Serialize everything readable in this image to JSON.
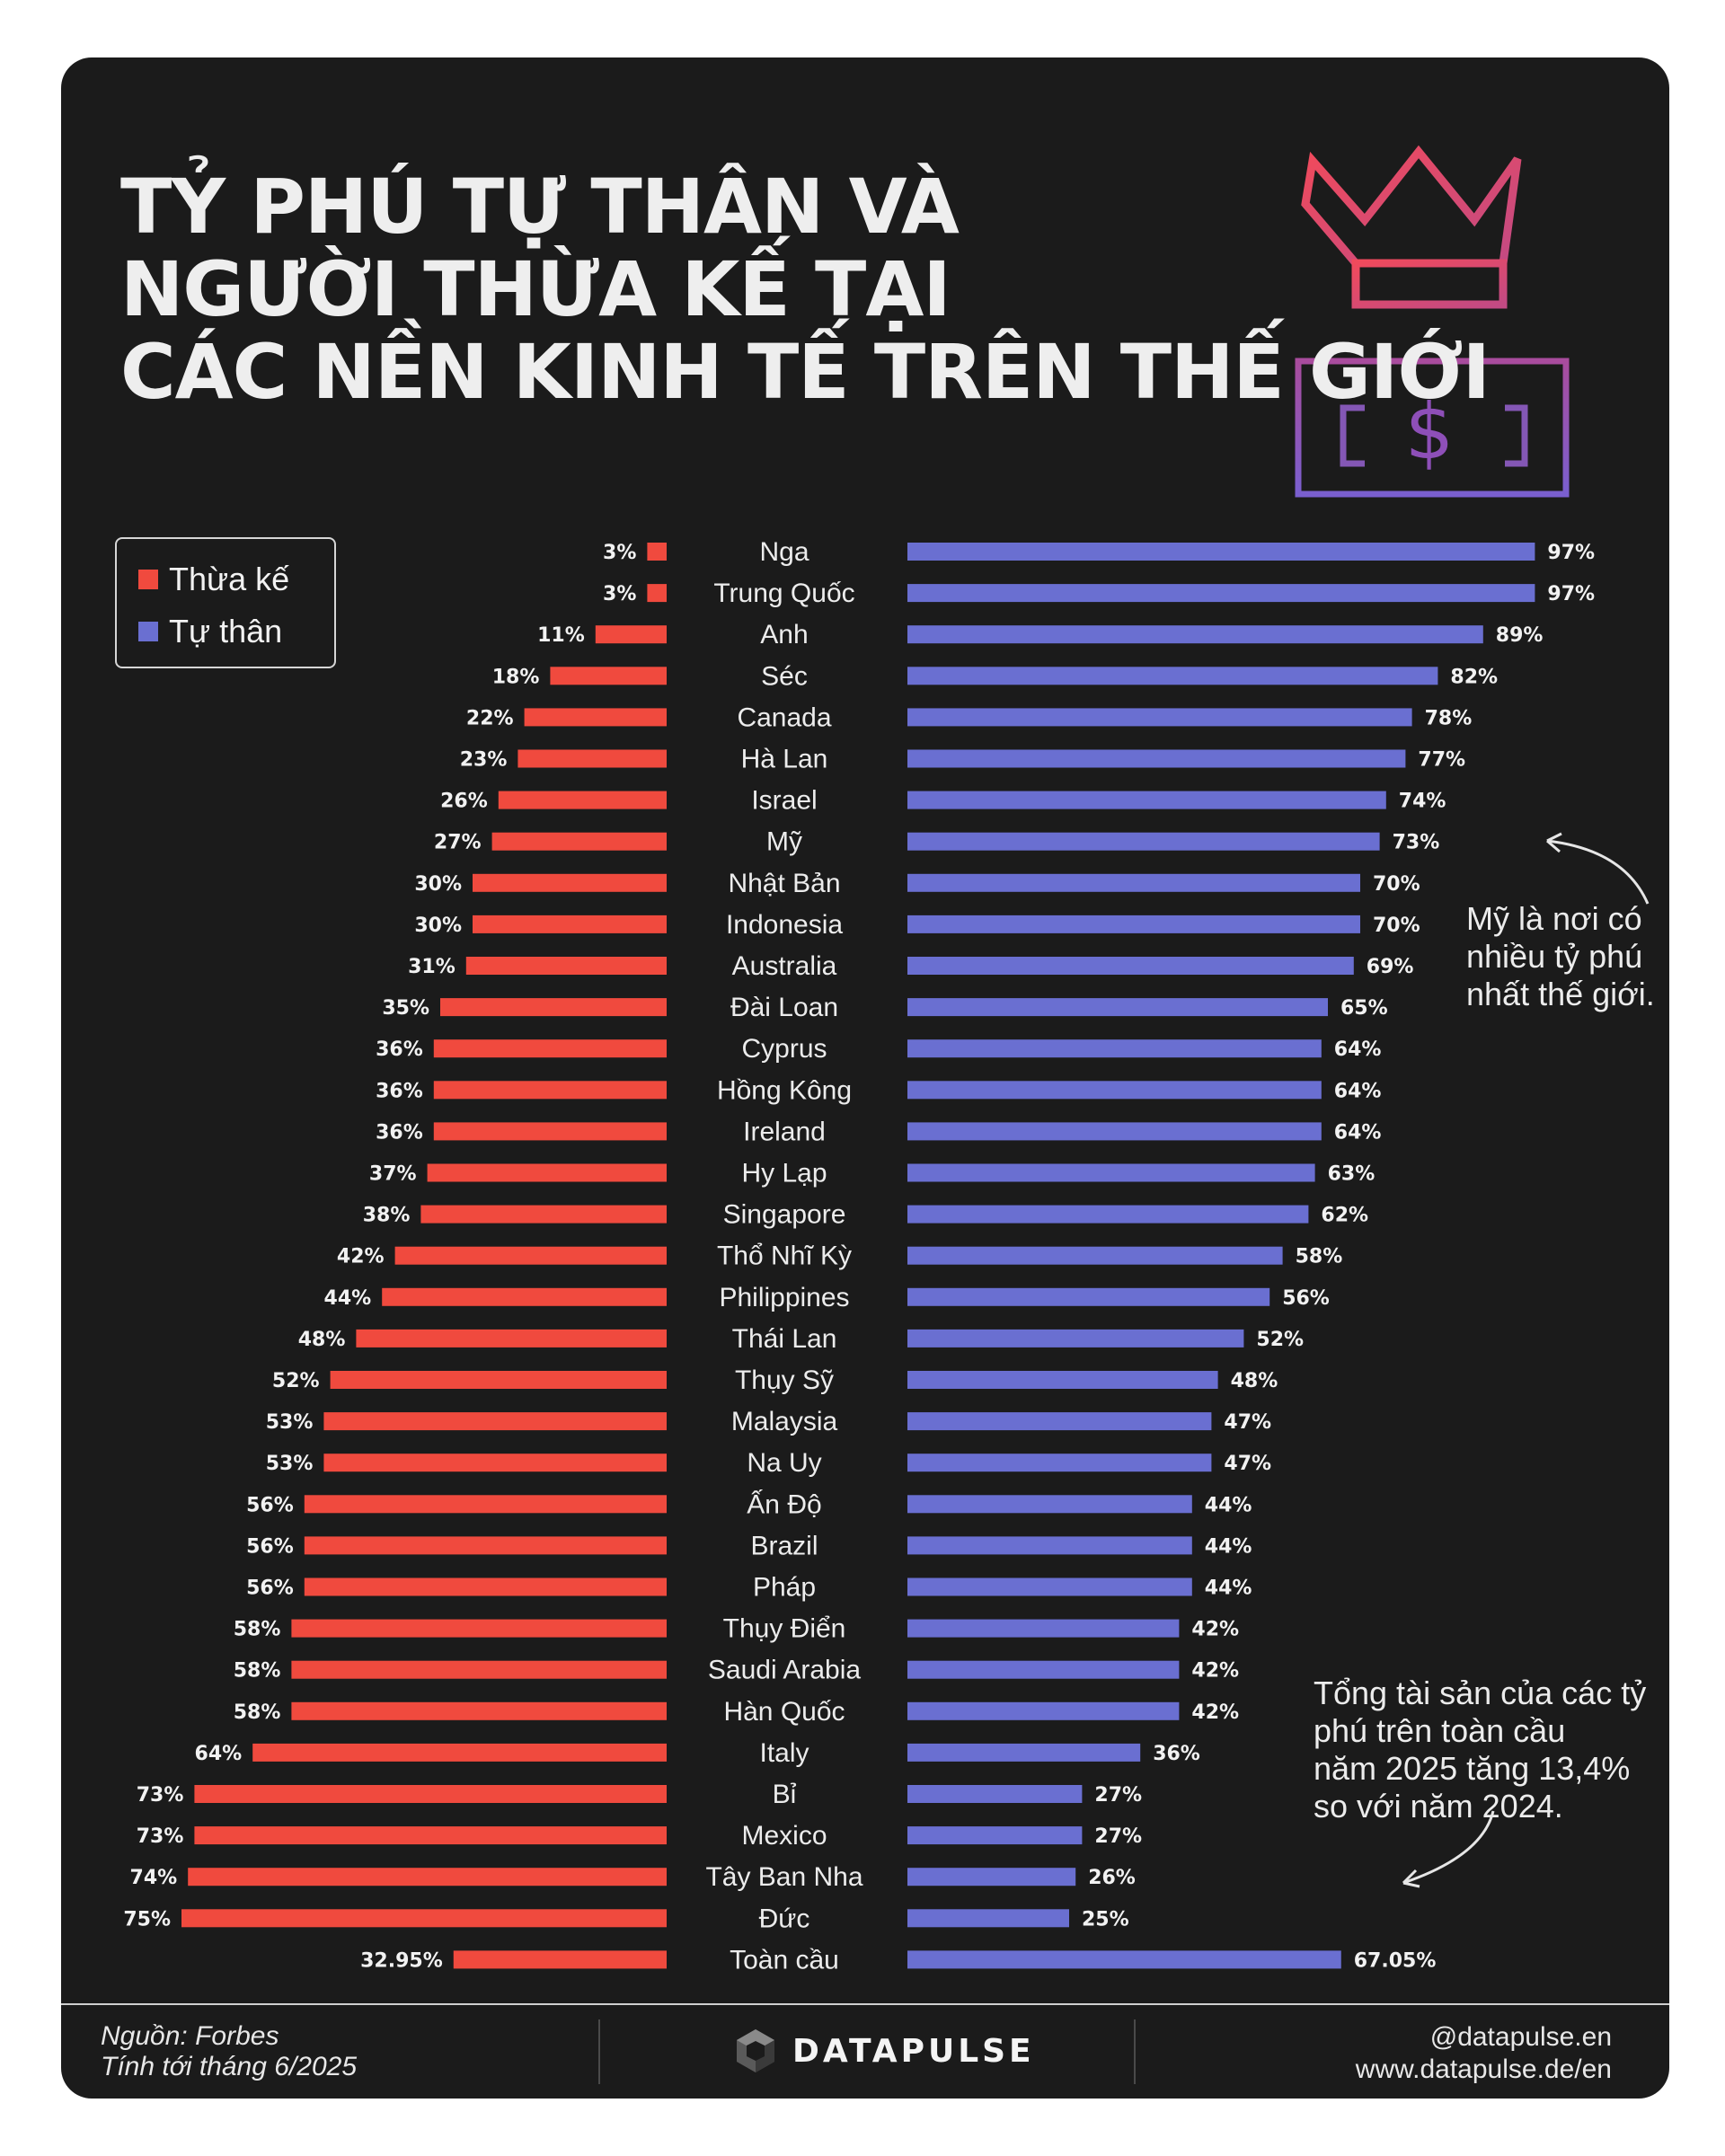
{
  "title": {
    "line1": "TỶ PHÚ TỰ THÂN VÀ",
    "line2": "NGƯỜI THỪA KẾ TẠI",
    "line3": "CÁC NỀN KINH TẾ TRÊN THẾ GIỚI"
  },
  "illustration": {
    "money_symbol": "$",
    "crown_icon": "crown-icon",
    "money_icon": "banknote-icon"
  },
  "legend": {
    "inherited": {
      "label": "Thừa kế",
      "color": "#f04a3e"
    },
    "selfmade": {
      "label": "Tự thân",
      "color": "#6a6fd1"
    }
  },
  "chart_data": {
    "type": "bar",
    "orientation": "horizontal-diverging",
    "categories": [
      "Nga",
      "Trung Quốc",
      "Anh",
      "Séc",
      "Canada",
      "Hà Lan",
      "Israel",
      "Mỹ",
      "Nhật Bản",
      "Indonesia",
      "Australia",
      "Đài Loan",
      "Cyprus",
      "Hồng Kông",
      "Ireland",
      "Hy Lạp",
      "Singapore",
      "Thổ Nhĩ Kỳ",
      "Philippines",
      "Thái Lan",
      "Thụy Sỹ",
      "Malaysia",
      "Na Uy",
      "Ấn Độ",
      "Brazil",
      "Pháp",
      "Thụy Điển",
      "Saudi Arabia",
      "Hàn Quốc",
      "Italy",
      "Bỉ",
      "Mexico",
      "Tây Ban Nha",
      "Đức",
      "Toàn cầu"
    ],
    "series": [
      {
        "name": "Thừa kế",
        "color": "#f04a3e",
        "values": [
          3,
          3,
          11,
          18,
          22,
          23,
          26,
          27,
          30,
          30,
          31,
          35,
          36,
          36,
          36,
          37,
          38,
          42,
          44,
          48,
          52,
          53,
          53,
          56,
          56,
          56,
          58,
          58,
          58,
          64,
          73,
          73,
          74,
          75,
          32.95
        ],
        "labels": [
          "3%",
          "3%",
          "11%",
          "18%",
          "22%",
          "23%",
          "26%",
          "27%",
          "30%",
          "30%",
          "31%",
          "35%",
          "36%",
          "36%",
          "36%",
          "37%",
          "38%",
          "42%",
          "44%",
          "48%",
          "52%",
          "53%",
          "53%",
          "56%",
          "56%",
          "56%",
          "58%",
          "58%",
          "58%",
          "64%",
          "73%",
          "73%",
          "74%",
          "75%",
          "32.95%"
        ]
      },
      {
        "name": "Tự thân",
        "color": "#6a6fd1",
        "values": [
          97,
          97,
          89,
          82,
          78,
          77,
          74,
          73,
          70,
          70,
          69,
          65,
          64,
          64,
          64,
          63,
          62,
          58,
          56,
          52,
          48,
          47,
          47,
          44,
          44,
          44,
          42,
          42,
          42,
          36,
          27,
          27,
          26,
          25,
          67.05
        ],
        "labels": [
          "97%",
          "97%",
          "89%",
          "82%",
          "78%",
          "77%",
          "74%",
          "73%",
          "70%",
          "70%",
          "69%",
          "65%",
          "64%",
          "64%",
          "64%",
          "63%",
          "62%",
          "58%",
          "56%",
          "52%",
          "48%",
          "47%",
          "47%",
          "44%",
          "44%",
          "44%",
          "42%",
          "42%",
          "42%",
          "36%",
          "27%",
          "27%",
          "26%",
          "25%",
          "67.05%"
        ]
      }
    ],
    "xlim": [
      0,
      100
    ],
    "unit": "%"
  },
  "annotations": {
    "us_note": "Mỹ là nơi có\nnhiều tỷ phú\nnhất thế giới.",
    "growth_note": "Tổng tài sản của các tỷ\nphú trên toàn cầu\nnăm 2025 tăng 13,4%\nso với năm 2024."
  },
  "footer": {
    "source": "Nguồn: Forbes",
    "as_of": "Tính tới tháng 6/2025",
    "brand": "DATAPULSE",
    "handle": "@datapulse.en",
    "website": "www.datapulse.de/en"
  }
}
